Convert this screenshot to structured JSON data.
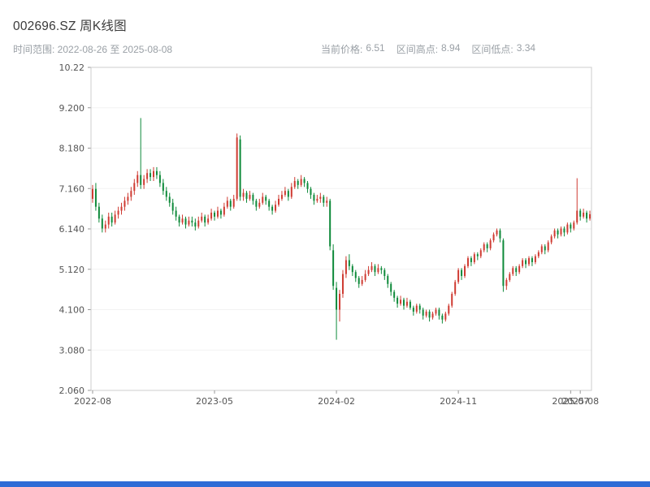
{
  "header": {
    "title": "002696.SZ 周K线图",
    "subtitle_left": "时间范围: 2022-08-26 至 2025-08-08",
    "stats": [
      {
        "label": "当前价格:",
        "value": "6.51"
      },
      {
        "label": "区间高点:",
        "value": "8.94"
      },
      {
        "label": "区间低点:",
        "value": "3.34"
      }
    ]
  },
  "ui": {
    "bottom_bar_color": "#2e6bd6"
  },
  "chart_data": {
    "type": "candlestick",
    "title": "002696.SZ 周K线图",
    "interval": "weekly",
    "date_start": "2022-08-26",
    "date_end": "2025-08-08",
    "current_price": 6.51,
    "range_high": 8.94,
    "range_low": 3.34,
    "ylim": [
      2.06,
      10.22
    ],
    "y_ticks": [
      "10.22",
      "9.200",
      "8.180",
      "7.160",
      "6.140",
      "5.120",
      "4.100",
      "3.080",
      "2.060"
    ],
    "y_tick_values": [
      10.22,
      9.2,
      8.18,
      7.16,
      6.14,
      5.12,
      4.1,
      3.08,
      2.06
    ],
    "x_ticks": [
      {
        "index": 0,
        "label": "2022-08"
      },
      {
        "index": 38,
        "label": "2023-05"
      },
      {
        "index": 76,
        "label": "2024-02"
      },
      {
        "index": 114,
        "label": "2024-11"
      },
      {
        "index": 149,
        "label": "2025-07"
      },
      {
        "index": 152,
        "label": "2025-08"
      }
    ],
    "grid": true,
    "legend": "none",
    "colors": {
      "up": "#cf3b32",
      "down": "#0e8a3a",
      "frame": "#cccccc",
      "grid": "#f2f2f2",
      "tick": "#999999",
      "tick_text": "#555555"
    },
    "candles": [
      [
        6.9,
        7.25,
        6.8,
        7.15
      ],
      [
        7.15,
        7.3,
        6.6,
        6.7
      ],
      [
        6.7,
        6.8,
        6.3,
        6.4
      ],
      [
        6.4,
        6.5,
        6.05,
        6.15
      ],
      [
        6.15,
        6.35,
        6.05,
        6.25
      ],
      [
        6.25,
        6.55,
        6.15,
        6.45
      ],
      [
        6.45,
        6.55,
        6.2,
        6.3
      ],
      [
        6.3,
        6.6,
        6.25,
        6.5
      ],
      [
        6.5,
        6.7,
        6.4,
        6.6
      ],
      [
        6.6,
        6.8,
        6.5,
        6.7
      ],
      [
        6.7,
        6.95,
        6.6,
        6.85
      ],
      [
        6.85,
        7.05,
        6.75,
        6.95
      ],
      [
        6.95,
        7.2,
        6.85,
        7.1
      ],
      [
        7.1,
        7.4,
        7.0,
        7.3
      ],
      [
        7.3,
        7.6,
        7.2,
        7.5
      ],
      [
        7.5,
        8.94,
        7.15,
        7.25
      ],
      [
        7.25,
        7.5,
        7.15,
        7.4
      ],
      [
        7.4,
        7.65,
        7.3,
        7.55
      ],
      [
        7.55,
        7.65,
        7.35,
        7.45
      ],
      [
        7.45,
        7.7,
        7.35,
        7.6
      ],
      [
        7.6,
        7.7,
        7.4,
        7.5
      ],
      [
        7.5,
        7.6,
        7.2,
        7.3
      ],
      [
        7.3,
        7.4,
        7.0,
        7.1
      ],
      [
        7.1,
        7.2,
        6.85,
        6.95
      ],
      [
        6.95,
        7.05,
        6.7,
        6.8
      ],
      [
        6.8,
        6.9,
        6.5,
        6.6
      ],
      [
        6.6,
        6.7,
        6.35,
        6.45
      ],
      [
        6.45,
        6.5,
        6.2,
        6.3
      ],
      [
        6.3,
        6.5,
        6.25,
        6.4
      ],
      [
        6.4,
        6.45,
        6.15,
        6.25
      ],
      [
        6.25,
        6.45,
        6.2,
        6.35
      ],
      [
        6.35,
        6.45,
        6.2,
        6.3
      ],
      [
        6.3,
        6.4,
        6.1,
        6.2
      ],
      [
        6.2,
        6.45,
        6.15,
        6.35
      ],
      [
        6.35,
        6.55,
        6.3,
        6.45
      ],
      [
        6.45,
        6.5,
        6.2,
        6.3
      ],
      [
        6.3,
        6.5,
        6.25,
        6.4
      ],
      [
        6.4,
        6.65,
        6.35,
        6.55
      ],
      [
        6.55,
        6.6,
        6.35,
        6.45
      ],
      [
        6.45,
        6.7,
        6.4,
        6.6
      ],
      [
        6.6,
        6.65,
        6.4,
        6.5
      ],
      [
        6.5,
        6.8,
        6.45,
        6.7
      ],
      [
        6.7,
        6.95,
        6.65,
        6.85
      ],
      [
        6.85,
        6.9,
        6.6,
        6.7
      ],
      [
        6.7,
        7.0,
        6.65,
        6.9
      ],
      [
        6.9,
        8.55,
        6.85,
        8.45
      ],
      [
        8.4,
        8.5,
        6.85,
        6.95
      ],
      [
        6.95,
        7.15,
        6.85,
        7.05
      ],
      [
        7.05,
        7.1,
        6.8,
        6.9
      ],
      [
        6.9,
        7.1,
        6.85,
        7.0
      ],
      [
        7.0,
        7.05,
        6.75,
        6.85
      ],
      [
        6.85,
        6.9,
        6.6,
        6.7
      ],
      [
        6.7,
        6.9,
        6.65,
        6.8
      ],
      [
        6.8,
        7.05,
        6.75,
        6.95
      ],
      [
        6.95,
        7.0,
        6.75,
        6.85
      ],
      [
        6.85,
        6.9,
        6.6,
        6.7
      ],
      [
        6.7,
        6.75,
        6.5,
        6.6
      ],
      [
        6.6,
        6.85,
        6.55,
        6.75
      ],
      [
        6.75,
        7.0,
        6.7,
        6.9
      ],
      [
        6.9,
        7.1,
        6.85,
        7.0
      ],
      [
        7.0,
        7.2,
        6.95,
        7.1
      ],
      [
        7.1,
        7.15,
        6.85,
        6.95
      ],
      [
        6.95,
        7.3,
        6.9,
        7.2
      ],
      [
        7.2,
        7.45,
        7.15,
        7.35
      ],
      [
        7.35,
        7.4,
        7.15,
        7.25
      ],
      [
        7.25,
        7.5,
        7.2,
        7.4
      ],
      [
        7.4,
        7.45,
        7.2,
        7.3
      ],
      [
        7.3,
        7.35,
        7.05,
        7.15
      ],
      [
        7.15,
        7.2,
        6.9,
        7.0
      ],
      [
        7.0,
        7.05,
        6.75,
        6.85
      ],
      [
        6.85,
        7.0,
        6.8,
        6.9
      ],
      [
        6.9,
        7.05,
        6.8,
        6.95
      ],
      [
        6.95,
        7.0,
        6.7,
        6.8
      ],
      [
        6.8,
        6.95,
        6.7,
        6.85
      ],
      [
        6.85,
        6.9,
        5.6,
        5.7
      ],
      [
        5.6,
        5.75,
        4.6,
        4.7
      ],
      [
        4.65,
        4.8,
        3.34,
        4.1
      ],
      [
        4.1,
        4.6,
        3.8,
        4.5
      ],
      [
        4.5,
        5.1,
        4.4,
        5.0
      ],
      [
        5.0,
        5.45,
        4.9,
        5.35
      ],
      [
        5.35,
        5.5,
        5.1,
        5.2
      ],
      [
        5.2,
        5.25,
        4.95,
        5.05
      ],
      [
        5.05,
        5.1,
        4.8,
        4.9
      ],
      [
        4.9,
        4.95,
        4.65,
        4.75
      ],
      [
        4.75,
        4.95,
        4.7,
        4.85
      ],
      [
        4.85,
        5.1,
        4.8,
        5.0
      ],
      [
        5.0,
        5.2,
        4.95,
        5.1
      ],
      [
        5.1,
        5.3,
        5.05,
        5.2
      ],
      [
        5.2,
        5.25,
        4.95,
        5.05
      ],
      [
        5.05,
        5.25,
        5.0,
        5.15
      ],
      [
        5.15,
        5.2,
        5.0,
        5.1
      ],
      [
        5.1,
        5.15,
        4.85,
        4.95
      ],
      [
        4.95,
        5.0,
        4.65,
        4.75
      ],
      [
        4.75,
        4.8,
        4.45,
        4.55
      ],
      [
        4.55,
        4.6,
        4.3,
        4.4
      ],
      [
        4.4,
        4.45,
        4.15,
        4.25
      ],
      [
        4.25,
        4.45,
        4.2,
        4.35
      ],
      [
        4.35,
        4.4,
        4.1,
        4.2
      ],
      [
        4.2,
        4.4,
        4.15,
        4.3
      ],
      [
        4.3,
        4.35,
        4.1,
        4.15
      ],
      [
        4.15,
        4.2,
        3.95,
        4.05
      ],
      [
        4.05,
        4.25,
        4.0,
        4.2
      ],
      [
        4.2,
        4.25,
        4.0,
        4.1
      ],
      [
        4.1,
        4.15,
        3.85,
        3.95
      ],
      [
        3.95,
        4.1,
        3.9,
        4.05
      ],
      [
        4.05,
        4.1,
        3.8,
        3.9
      ],
      [
        3.9,
        4.05,
        3.85,
        4.0
      ],
      [
        4.0,
        4.15,
        3.95,
        4.1
      ],
      [
        4.1,
        4.15,
        3.85,
        3.95
      ],
      [
        3.95,
        4.0,
        3.75,
        3.85
      ],
      [
        3.85,
        4.05,
        3.8,
        4.0
      ],
      [
        4.0,
        4.25,
        3.95,
        4.2
      ],
      [
        4.2,
        4.55,
        4.15,
        4.5
      ],
      [
        4.5,
        4.85,
        4.45,
        4.8
      ],
      [
        4.8,
        5.15,
        4.75,
        5.1
      ],
      [
        5.1,
        5.15,
        4.85,
        4.95
      ],
      [
        4.95,
        5.25,
        4.9,
        5.2
      ],
      [
        5.2,
        5.45,
        5.15,
        5.4
      ],
      [
        5.4,
        5.45,
        5.2,
        5.3
      ],
      [
        5.3,
        5.55,
        5.25,
        5.5
      ],
      [
        5.5,
        5.55,
        5.35,
        5.45
      ],
      [
        5.45,
        5.65,
        5.4,
        5.6
      ],
      [
        5.6,
        5.8,
        5.55,
        5.75
      ],
      [
        5.75,
        5.8,
        5.55,
        5.65
      ],
      [
        5.65,
        5.9,
        5.6,
        5.85
      ],
      [
        5.85,
        6.05,
        5.8,
        6.0
      ],
      [
        6.0,
        6.15,
        5.95,
        6.1
      ],
      [
        6.1,
        6.15,
        5.8,
        5.9
      ],
      [
        5.85,
        5.9,
        4.55,
        4.7
      ],
      [
        4.7,
        4.9,
        4.6,
        4.85
      ],
      [
        4.85,
        5.05,
        4.8,
        5.0
      ],
      [
        5.0,
        5.2,
        4.95,
        5.15
      ],
      [
        5.15,
        5.2,
        4.95,
        5.05
      ],
      [
        5.05,
        5.25,
        5.0,
        5.2
      ],
      [
        5.2,
        5.4,
        5.15,
        5.35
      ],
      [
        5.35,
        5.4,
        5.15,
        5.25
      ],
      [
        5.25,
        5.45,
        5.2,
        5.4
      ],
      [
        5.4,
        5.45,
        5.2,
        5.3
      ],
      [
        5.3,
        5.5,
        5.25,
        5.45
      ],
      [
        5.45,
        5.6,
        5.4,
        5.55
      ],
      [
        5.55,
        5.75,
        5.5,
        5.7
      ],
      [
        5.7,
        5.75,
        5.5,
        5.6
      ],
      [
        5.6,
        5.85,
        5.55,
        5.8
      ],
      [
        5.8,
        6.0,
        5.75,
        5.95
      ],
      [
        5.95,
        6.15,
        5.9,
        6.1
      ],
      [
        6.1,
        6.15,
        5.9,
        6.0
      ],
      [
        6.0,
        6.2,
        5.95,
        6.15
      ],
      [
        6.15,
        6.2,
        5.95,
        6.05
      ],
      [
        6.05,
        6.3,
        6.0,
        6.25
      ],
      [
        6.25,
        6.3,
        6.05,
        6.15
      ],
      [
        6.15,
        6.35,
        6.1,
        6.3
      ],
      [
        6.3,
        7.42,
        6.25,
        6.6
      ],
      [
        6.6,
        6.65,
        6.35,
        6.45
      ],
      [
        6.45,
        6.65,
        6.4,
        6.55
      ],
      [
        6.55,
        6.6,
        6.3,
        6.4
      ],
      [
        6.4,
        6.6,
        6.35,
        6.51
      ]
    ]
  }
}
